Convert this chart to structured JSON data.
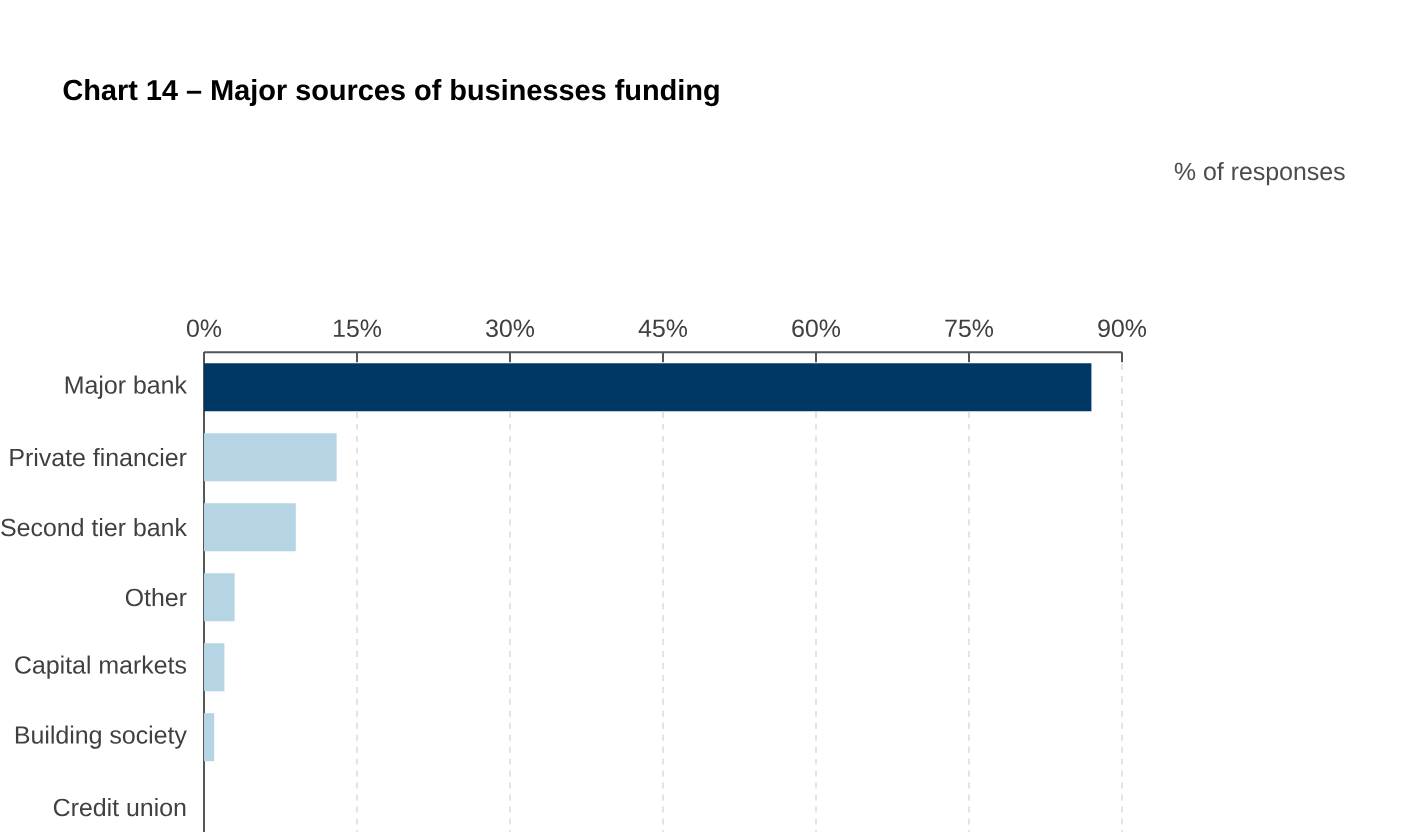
{
  "chart_data": {
    "type": "bar",
    "orientation": "horizontal",
    "title": "Chart 14 – Major sources of businesses funding",
    "annotations": [
      "% of responses"
    ],
    "categories": [
      "Major bank",
      "Private financier",
      "Second tier bank",
      "Other",
      "Capital markets",
      "Building society",
      "Credit union"
    ],
    "values": [
      87,
      13,
      9,
      3,
      2,
      1,
      0
    ],
    "colors": [
      "#003865",
      "#b5d4e4",
      "#b5d4e4",
      "#b5d4e4",
      "#b5d4e4",
      "#b5d4e4",
      "#b5d4e4"
    ],
    "xlim": [
      0,
      90
    ],
    "xticks": [
      {
        "value": 0,
        "label": "0%"
      },
      {
        "value": 15,
        "label": "15%"
      },
      {
        "value": 30,
        "label": "30%"
      },
      {
        "value": 45,
        "label": "45%"
      },
      {
        "value": 60,
        "label": "60%"
      },
      {
        "value": 75,
        "label": "75%"
      },
      {
        "value": 90,
        "label": "90%"
      }
    ],
    "grid": "x"
  }
}
